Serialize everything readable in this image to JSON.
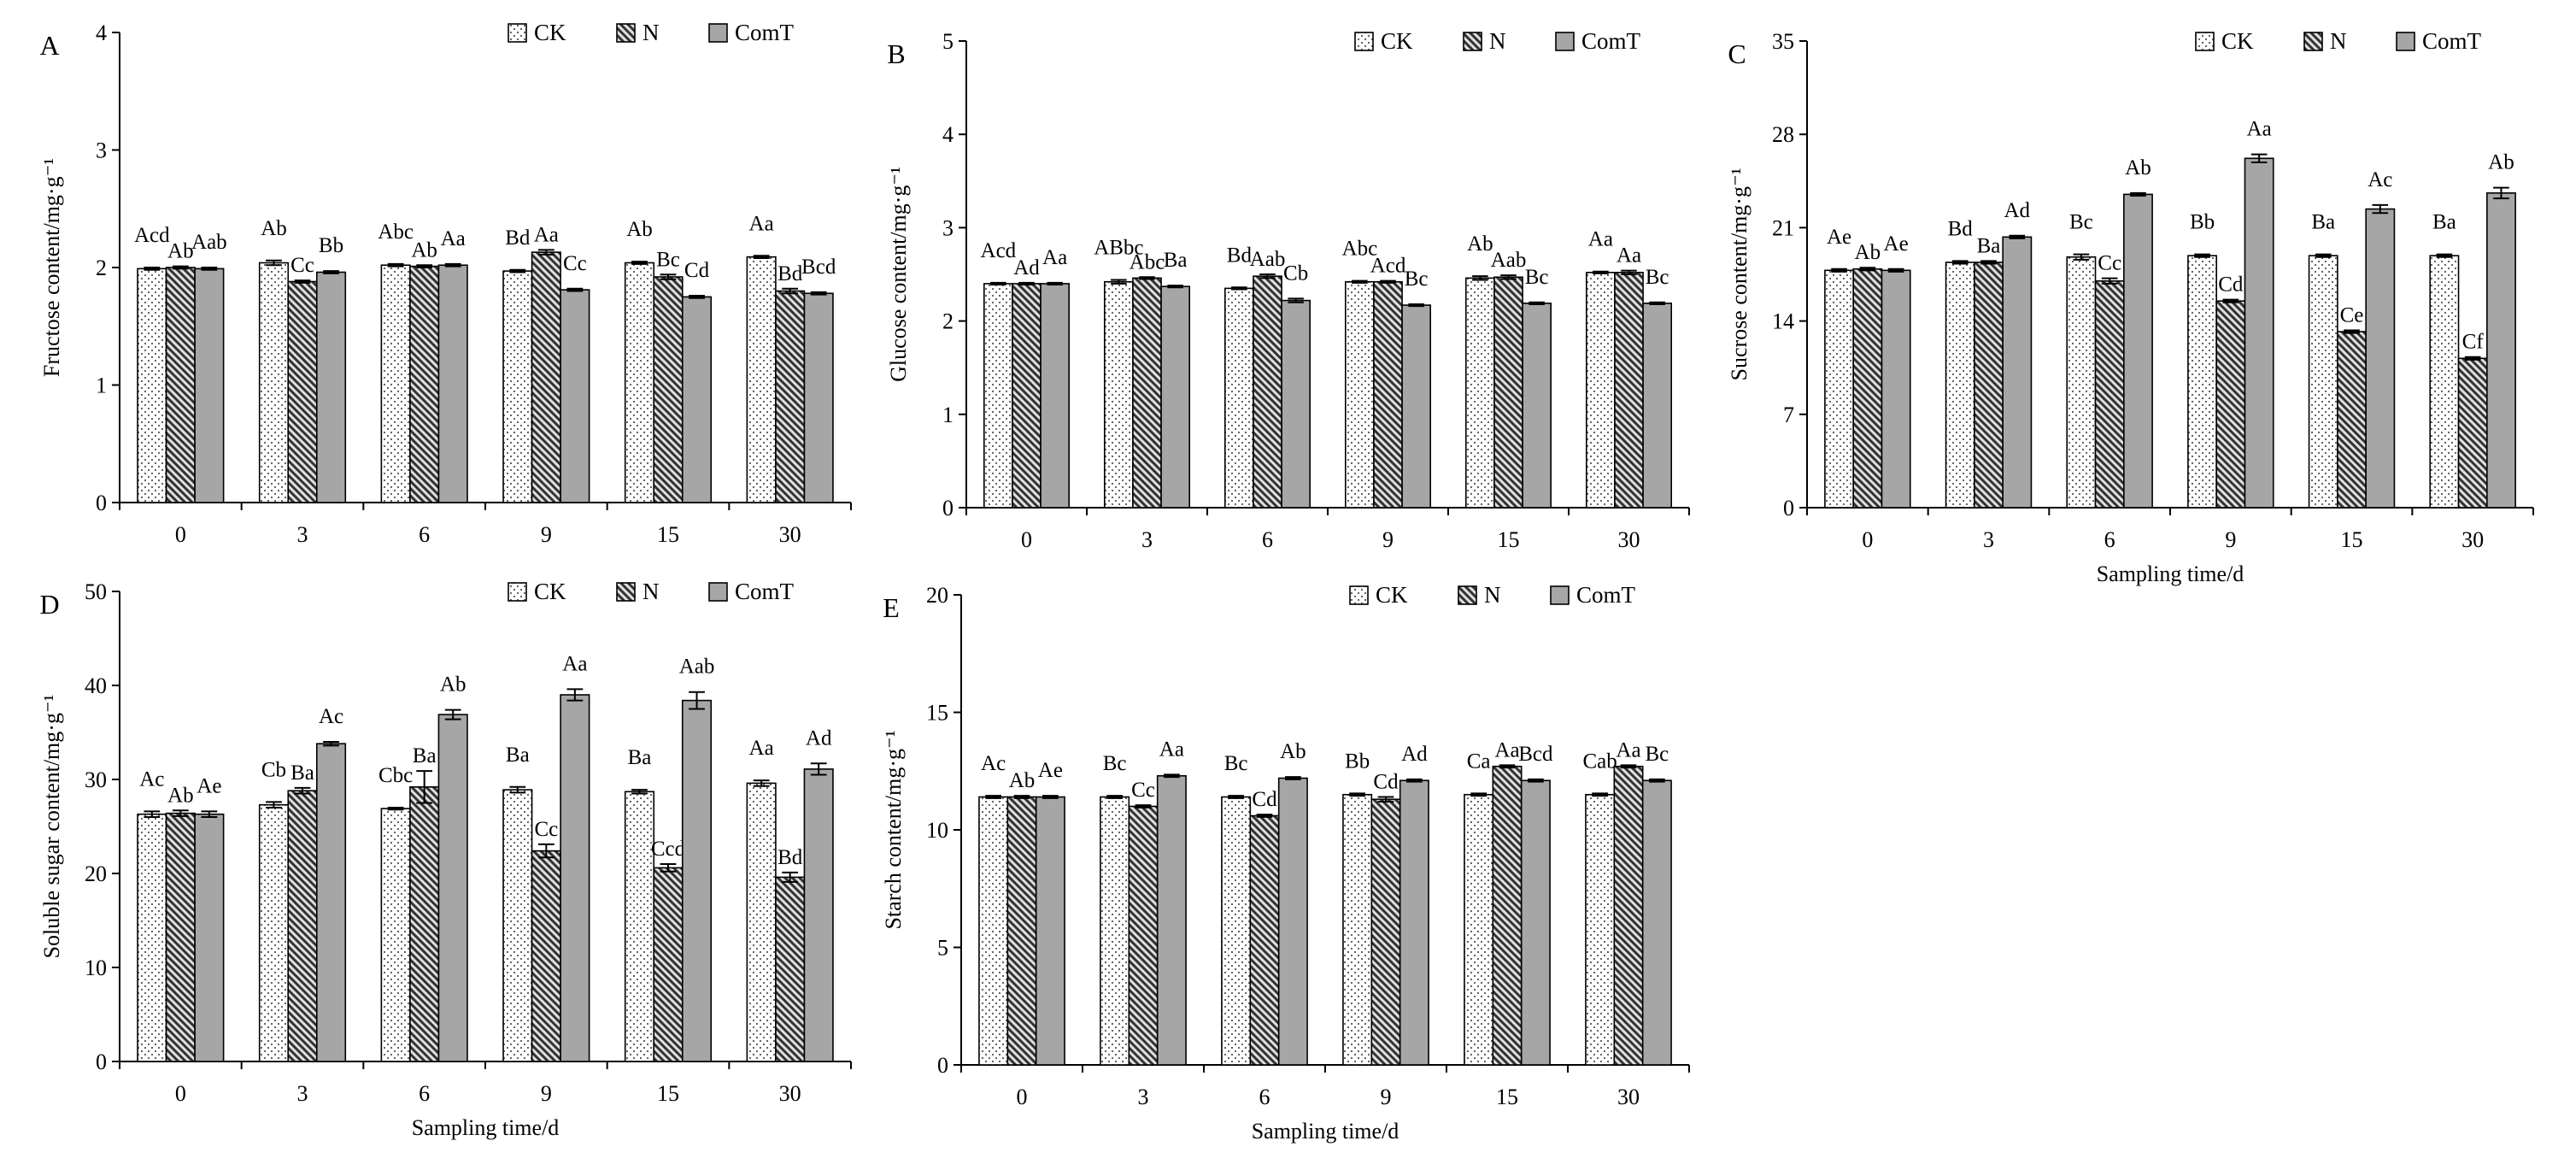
{
  "colors": {
    "CK": "#ffffff",
    "CK_dots": "#555555",
    "N": "#333333",
    "N_bg": "#e0e0e0",
    "ComT": "#a6a6a6"
  },
  "chart_data": [
    {
      "panel": "A",
      "type": "bar",
      "ylabel": "Fructose content/mg·g⁻¹",
      "categories": [
        "0",
        "3",
        "6",
        "9",
        "15",
        "30"
      ],
      "ylim": [
        0,
        4
      ],
      "yticks": [
        0,
        1,
        2,
        3,
        4
      ],
      "grid": false,
      "series": [
        {
          "name": "CK",
          "values": [
            1.99,
            2.04,
            2.02,
            1.97,
            2.04,
            2.09
          ],
          "errors": [
            0.01,
            0.02,
            0.01,
            0.01,
            0.01,
            0.01
          ],
          "labels": [
            "Acd",
            "Ab",
            "Abc",
            "Bd",
            "Ab",
            "Aa"
          ]
        },
        {
          "name": "N",
          "values": [
            2.0,
            1.88,
            2.01,
            2.13,
            1.92,
            1.8
          ],
          "errors": [
            0.01,
            0.01,
            0.01,
            0.02,
            0.02,
            0.02
          ],
          "labels": [
            "Ab",
            "Cc",
            "Ab",
            "Aa",
            "Bc",
            "Bd"
          ]
        },
        {
          "name": "ComT",
          "values": [
            1.99,
            1.96,
            2.02,
            1.81,
            1.75,
            1.78
          ],
          "errors": [
            0.01,
            0.01,
            0.01,
            0.01,
            0.01,
            0.01
          ],
          "labels": [
            "Aab",
            "Bb",
            "Aa",
            "Cc",
            "Cd",
            "Bcd"
          ]
        }
      ]
    },
    {
      "panel": "B",
      "type": "bar",
      "ylabel": "Glucose content/mg·g⁻¹",
      "categories": [
        "0",
        "3",
        "6",
        "9",
        "15",
        "30"
      ],
      "ylim": [
        0,
        5
      ],
      "yticks": [
        0,
        1,
        2,
        3,
        4,
        5
      ],
      "grid": false,
      "series": [
        {
          "name": "CK",
          "values": [
            2.4,
            2.42,
            2.35,
            2.42,
            2.46,
            2.52
          ],
          "errors": [
            0.01,
            0.02,
            0.01,
            0.01,
            0.02,
            0.01
          ],
          "labels": [
            "Acd",
            "ABbc",
            "Bd",
            "Abc",
            "Ab",
            "Aa"
          ]
        },
        {
          "name": "N",
          "values": [
            2.4,
            2.46,
            2.48,
            2.42,
            2.47,
            2.52
          ],
          "errors": [
            0.01,
            0.01,
            0.02,
            0.01,
            0.02,
            0.02
          ],
          "labels": [
            "Ad",
            "Abc",
            "Aab",
            "Acd",
            "Aab",
            "Aa"
          ]
        },
        {
          "name": "ComT",
          "values": [
            2.4,
            2.37,
            2.22,
            2.17,
            2.19,
            2.19
          ],
          "errors": [
            0.01,
            0.01,
            0.02,
            0.01,
            0.01,
            0.01
          ],
          "labels": [
            "Aa",
            "Ba",
            "Cb",
            "Bc",
            "Bc",
            "Bc"
          ]
        }
      ]
    },
    {
      "panel": "C",
      "type": "bar",
      "ylabel": "Sucrose content/mg·g⁻¹",
      "xlabel": "Sampling time/d",
      "categories": [
        "0",
        "3",
        "6",
        "9",
        "15",
        "30"
      ],
      "ylim": [
        0,
        35
      ],
      "yticks": [
        0,
        7,
        14,
        21,
        28,
        35
      ],
      "grid": false,
      "series": [
        {
          "name": "CK",
          "values": [
            17.8,
            18.4,
            18.8,
            18.9,
            18.9,
            18.9
          ],
          "errors": [
            0.1,
            0.1,
            0.2,
            0.1,
            0.1,
            0.1
          ],
          "labels": [
            "Ae",
            "Bd",
            "Bc",
            "Bb",
            "Ba",
            "Ba"
          ]
        },
        {
          "name": "N",
          "values": [
            17.9,
            18.4,
            17.0,
            15.5,
            13.2,
            11.2
          ],
          "errors": [
            0.1,
            0.1,
            0.2,
            0.1,
            0.1,
            0.1
          ],
          "labels": [
            "Ab",
            "Ba",
            "Cc",
            "Cd",
            "Ce",
            "Cf"
          ]
        },
        {
          "name": "ComT",
          "values": [
            17.8,
            20.3,
            23.5,
            26.2,
            22.4,
            23.6
          ],
          "errors": [
            0.1,
            0.1,
            0.1,
            0.3,
            0.3,
            0.4
          ],
          "labels": [
            "Ae",
            "Ad",
            "Ab",
            "Aa",
            "Ac",
            "Ab"
          ]
        }
      ]
    },
    {
      "panel": "D",
      "type": "bar",
      "ylabel": "Soluble sugar content/mg·g⁻¹",
      "xlabel": "Sampling time/d",
      "categories": [
        "0",
        "3",
        "6",
        "9",
        "15",
        "30"
      ],
      "ylim": [
        0,
        50
      ],
      "yticks": [
        0,
        10,
        20,
        30,
        40,
        50
      ],
      "grid": false,
      "series": [
        {
          "name": "CK",
          "values": [
            26.3,
            27.3,
            26.9,
            28.9,
            28.7,
            29.6
          ],
          "errors": [
            0.3,
            0.3,
            0.1,
            0.3,
            0.2,
            0.3
          ],
          "labels": [
            "Ac",
            "Cb",
            "Cbc",
            "Ba",
            "Ba",
            "Aa"
          ]
        },
        {
          "name": "N",
          "values": [
            26.4,
            28.8,
            29.2,
            22.4,
            20.6,
            19.6
          ],
          "errors": [
            0.3,
            0.3,
            1.7,
            0.7,
            0.4,
            0.5
          ],
          "labels": [
            "Ab",
            "Ba",
            "Ba",
            "Cc",
            "Ccd",
            "Bd"
          ]
        },
        {
          "name": "ComT",
          "values": [
            26.3,
            33.8,
            36.9,
            39.0,
            38.4,
            31.1
          ],
          "errors": [
            0.3,
            0.2,
            0.5,
            0.6,
            0.9,
            0.6
          ],
          "labels": [
            "Ae",
            "Ac",
            "Ab",
            "Aa",
            "Aab",
            "Ad"
          ]
        }
      ]
    },
    {
      "panel": "E",
      "type": "bar",
      "ylabel": "Starch content/mg·g⁻¹",
      "xlabel": "Sampling time/d",
      "categories": [
        "0",
        "3",
        "6",
        "9",
        "15",
        "30"
      ],
      "ylim": [
        0,
        20
      ],
      "yticks": [
        0,
        5,
        10,
        15,
        20
      ],
      "grid": false,
      "series": [
        {
          "name": "CK",
          "values": [
            11.4,
            11.4,
            11.4,
            11.5,
            11.5,
            11.5
          ],
          "errors": [
            0.05,
            0.05,
            0.05,
            0.05,
            0.05,
            0.05
          ],
          "labels": [
            "Ac",
            "Bc",
            "Bc",
            "Bb",
            "Ca",
            "Cab"
          ]
        },
        {
          "name": "N",
          "values": [
            11.4,
            11.0,
            10.6,
            11.3,
            12.7,
            12.7
          ],
          "errors": [
            0.05,
            0.05,
            0.05,
            0.1,
            0.05,
            0.05
          ],
          "labels": [
            "Ab",
            "Cc",
            "Cd",
            "Cd",
            "Aa",
            "Aa"
          ]
        },
        {
          "name": "ComT",
          "values": [
            11.4,
            12.3,
            12.2,
            12.1,
            12.1,
            12.1
          ],
          "errors": [
            0.05,
            0.05,
            0.05,
            0.05,
            0.05,
            0.05
          ],
          "labels": [
            "Ae",
            "Aa",
            "Ab",
            "Ad",
            "Bcd",
            "Bc"
          ]
        }
      ]
    }
  ]
}
